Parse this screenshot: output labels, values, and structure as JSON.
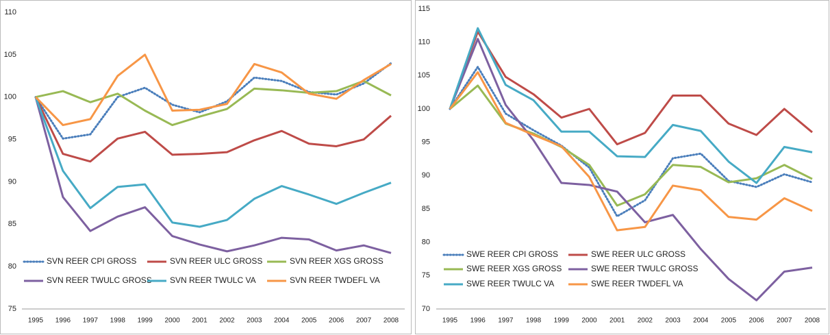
{
  "chart_data": [
    {
      "type": "line",
      "categories": [
        "1995",
        "1996",
        "1997",
        "1998",
        "1999",
        "2000",
        "2001",
        "2002",
        "2003",
        "2004",
        "2005",
        "2006",
        "2007",
        "2008"
      ],
      "ylim": [
        75,
        110
      ],
      "yticks": [
        75,
        80,
        85,
        90,
        95,
        100,
        105,
        110
      ],
      "grid": false,
      "series": [
        {
          "name": "SVN REER CPI GROSS",
          "color": "#4a7ebb",
          "dash": true,
          "values": [
            100,
            95.1,
            95.6,
            100,
            101.1,
            99.1,
            98.2,
            99.5,
            102.3,
            101.9,
            100.6,
            100.3,
            101.6,
            104
          ]
        },
        {
          "name": "SVN REER ULC GROSS",
          "color": "#be4b48",
          "dash": false,
          "values": [
            100,
            93.3,
            92.4,
            95.1,
            95.9,
            93.2,
            93.3,
            93.5,
            94.9,
            96.0,
            94.5,
            94.2,
            95.0,
            97.8
          ]
        },
        {
          "name": "SVN REER XGS GROSS",
          "color": "#98b954",
          "dash": false,
          "values": [
            100,
            100.7,
            99.4,
            100.4,
            98.4,
            96.7,
            97.7,
            98.6,
            101.0,
            100.8,
            100.5,
            100.7,
            101.9,
            100.2
          ]
        },
        {
          "name": "SVN REER TWULC GROSS",
          "color": "#7d60a0",
          "dash": false,
          "values": [
            100,
            88.2,
            84.2,
            85.9,
            87.0,
            83.6,
            82.6,
            81.8,
            82.5,
            83.4,
            83.2,
            81.9,
            82.5,
            81.6
          ]
        },
        {
          "name": "SVN REER TWULC VA",
          "color": "#46aac5",
          "dash": false,
          "values": [
            100,
            91.3,
            86.9,
            89.4,
            89.7,
            85.2,
            84.7,
            85.5,
            88.0,
            89.5,
            88.5,
            87.4,
            88.7,
            89.9
          ]
        },
        {
          "name": "SVN REER TWDEFL VA",
          "color": "#f79646",
          "dash": false,
          "values": [
            100,
            96.7,
            97.4,
            102.5,
            105,
            98.4,
            98.5,
            99.2,
            103.9,
            102.9,
            100.4,
            99.8,
            102.0,
            103.9
          ]
        }
      ]
    },
    {
      "type": "line",
      "categories": [
        "1995",
        "1996",
        "1997",
        "1998",
        "1999",
        "2000",
        "2001",
        "2002",
        "2003",
        "2004",
        "2005",
        "2006",
        "2007",
        "2008"
      ],
      "ylim": [
        70,
        115
      ],
      "yticks": [
        70,
        75,
        80,
        85,
        90,
        95,
        100,
        105,
        110,
        115
      ],
      "grid": false,
      "series": [
        {
          "name": "SWE REER CPI GROSS",
          "color": "#4a7ebb",
          "dash": true,
          "values": [
            100,
            106.3,
            99.3,
            96.8,
            94.5,
            91.2,
            83.9,
            86.3,
            92.6,
            93.3,
            89.2,
            88.3,
            90.2,
            89.0
          ]
        },
        {
          "name": "SWE REER ULC GROSS",
          "color": "#be4b48",
          "dash": false,
          "values": [
            100,
            111.6,
            104.8,
            102.2,
            98.7,
            100.0,
            94.7,
            96.4,
            102.0,
            102.0,
            97.8,
            96.1,
            100.0,
            96.5
          ]
        },
        {
          "name": "SWE REER XGS GROSS",
          "color": "#98b954",
          "dash": false,
          "values": [
            100,
            103.5,
            97.8,
            96.3,
            94.3,
            91.6,
            85.5,
            87.2,
            91.6,
            91.3,
            89.0,
            89.6,
            91.6,
            89.5
          ]
        },
        {
          "name": "SWE REER TWULC GROSS",
          "color": "#7d60a0",
          "dash": false,
          "values": [
            100,
            110.5,
            100.6,
            95.3,
            88.9,
            88.6,
            87.6,
            83.0,
            84.1,
            79.0,
            74.5,
            71.3,
            75.6,
            76.2
          ]
        },
        {
          "name": "SWE REER TWULC VA",
          "color": "#46aac5",
          "dash": false,
          "values": [
            100,
            112.1,
            103.6,
            101.3,
            96.6,
            96.6,
            92.9,
            92.8,
            97.6,
            96.7,
            92.1,
            88.9,
            94.3,
            93.5
          ]
        },
        {
          "name": "SWE REER TWDEFL VA",
          "color": "#f79646",
          "dash": false,
          "values": [
            100,
            105.5,
            97.9,
            96.1,
            94.4,
            89.8,
            81.8,
            82.3,
            88.5,
            87.8,
            83.8,
            83.4,
            86.6,
            84.7
          ]
        }
      ]
    }
  ]
}
